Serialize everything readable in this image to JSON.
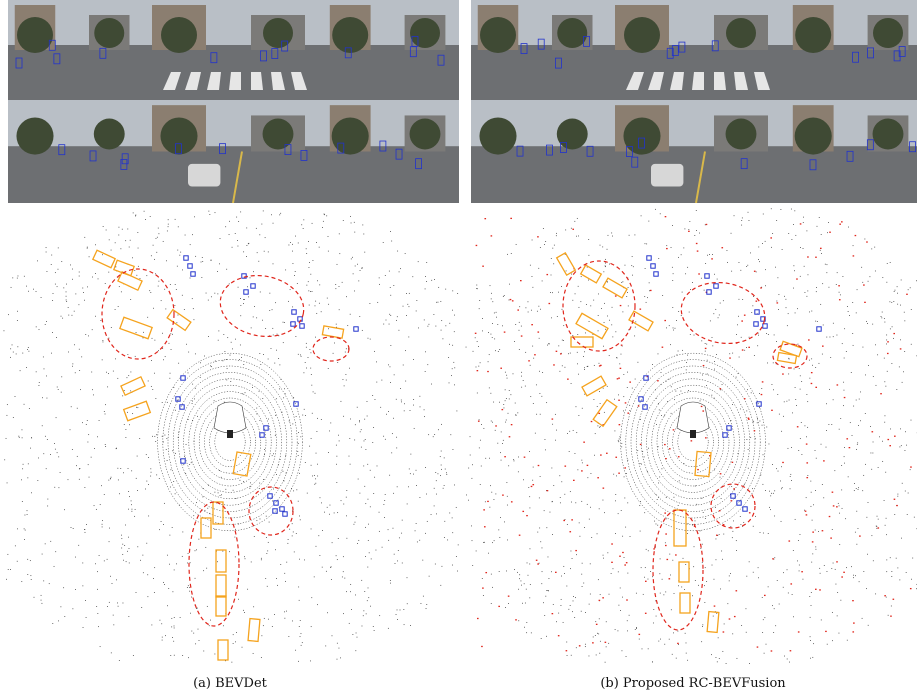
{
  "figure": {
    "panels": [
      {
        "id": "a",
        "caption": "(a) BEVDet"
      },
      {
        "id": "b",
        "caption": "(b) Proposed RC-BEVFusion"
      }
    ]
  },
  "colors": {
    "car_box": "#f5a31e",
    "pedestrian_box": "#2233cc",
    "highlight_ellipse": "#e0261c",
    "radar_points": "#e0261c",
    "lidar_points": "#222222",
    "sky": "#b9bfc6",
    "road": "#6d6f72",
    "trees": "#3f4a34",
    "buildings": "#8b7e70"
  }
}
